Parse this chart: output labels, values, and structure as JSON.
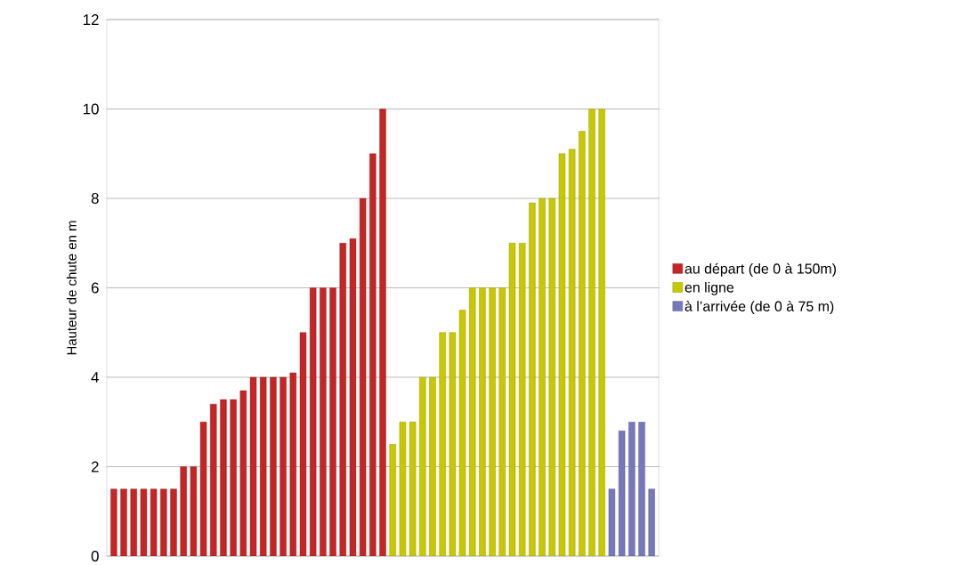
{
  "chart_data": {
    "type": "bar",
    "ylabel": "Hauteur de chute en m",
    "categories": [
      null,
      null,
      null,
      null,
      null,
      null,
      null,
      null,
      null,
      null,
      null,
      null,
      null,
      null,
      null,
      null,
      null,
      null,
      null,
      null,
      null,
      null,
      null,
      null,
      null,
      null,
      null,
      null,
      null,
      null,
      null,
      null,
      null,
      null,
      null,
      null,
      null,
      null,
      null,
      null,
      null,
      null,
      null,
      null,
      null,
      null,
      null,
      null,
      null,
      null,
      null,
      null,
      null,
      null,
      null
    ],
    "series": [
      {
        "name": "au départ (de 0 à 150m)",
        "color": "#c42525",
        "values": [
          1.5,
          1.5,
          1.5,
          1.5,
          1.5,
          1.5,
          1.5,
          2,
          2,
          3,
          3.4,
          3.5,
          3.5,
          3.7,
          4,
          4,
          4,
          4,
          4.1,
          5,
          6,
          6,
          6,
          7,
          7.1,
          8,
          9,
          10,
          null,
          null,
          null,
          null,
          null,
          null,
          null,
          null,
          null,
          null,
          null,
          null,
          null,
          null,
          null,
          null,
          null,
          null,
          null,
          null,
          null,
          null,
          null,
          null,
          null,
          null,
          null
        ]
      },
      {
        "name": "en ligne",
        "color": "#c8c800",
        "values": [
          null,
          null,
          null,
          null,
          null,
          null,
          null,
          null,
          null,
          null,
          null,
          null,
          null,
          null,
          null,
          null,
          null,
          null,
          null,
          null,
          null,
          null,
          null,
          null,
          null,
          null,
          null,
          null,
          2.5,
          3,
          3,
          4,
          4,
          5,
          5,
          5.5,
          6,
          6,
          6,
          6,
          7,
          7,
          7.9,
          8,
          8,
          9,
          9.1,
          9.5,
          10,
          10,
          null,
          null,
          null,
          null,
          null
        ]
      },
      {
        "name": "à l’arrivée (de 0 à 75 m)",
        "color": "#7777bb",
        "values": [
          null,
          null,
          null,
          null,
          null,
          null,
          null,
          null,
          null,
          null,
          null,
          null,
          null,
          null,
          null,
          null,
          null,
          null,
          null,
          null,
          null,
          null,
          null,
          null,
          null,
          null,
          null,
          null,
          null,
          null,
          null,
          null,
          null,
          null,
          null,
          null,
          null,
          null,
          null,
          null,
          null,
          null,
          null,
          null,
          null,
          null,
          null,
          null,
          null,
          null,
          1.5,
          2.8,
          3,
          3,
          1.5
        ]
      }
    ],
    "ylim": [
      0,
      12
    ],
    "yticks": [
      0,
      2,
      4,
      6,
      8,
      10,
      12
    ],
    "grid": "y",
    "legend": "right",
    "tick_labels": "y"
  }
}
